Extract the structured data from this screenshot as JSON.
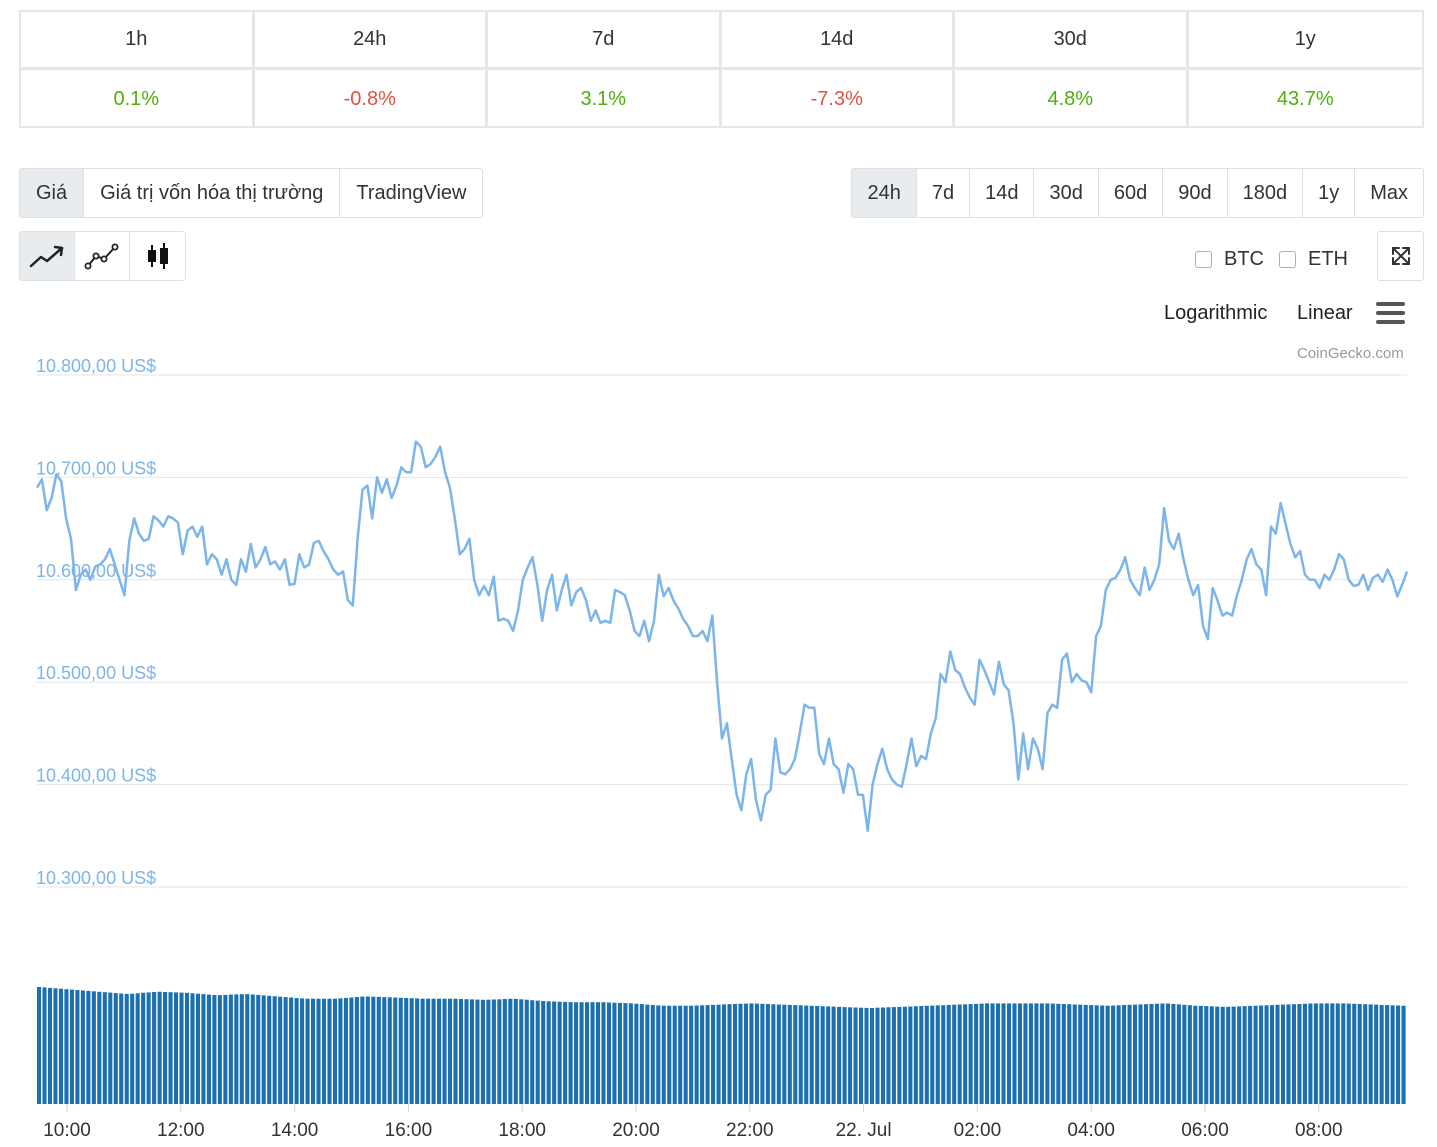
{
  "performance": {
    "headers": [
      "1h",
      "24h",
      "7d",
      "14d",
      "30d",
      "1y"
    ],
    "values": [
      "0.1%",
      "-0.8%",
      "3.1%",
      "-7.3%",
      "4.8%",
      "43.7%"
    ]
  },
  "tabs": {
    "type": [
      "Giá",
      "Giá trị vốn hóa thị trường",
      "TradingView"
    ],
    "range": [
      "24h",
      "7d",
      "14d",
      "30d",
      "60d",
      "90d",
      "180d",
      "1y",
      "Max"
    ]
  },
  "compare": {
    "btc": "BTC",
    "eth": "ETH"
  },
  "scale": {
    "log": "Logarithmic",
    "linear": "Linear"
  },
  "credits": "CoinGecko.com",
  "icons": {
    "style_line": "line-chart-icon",
    "style_points": "line-points-icon",
    "style_candle": "candlestick-icon",
    "expand": "expand-icon",
    "menu": "hamburger-menu-icon"
  },
  "colors": {
    "line": "#7cb5ec",
    "volume": "#1b70b0",
    "up": "#4eaf0a",
    "down": "#e15241"
  },
  "chart_data": {
    "type": "line",
    "y_tick_labels": [
      "10.800,00 US$",
      "10.700,00 US$",
      "10.600,00 US$",
      "10.500,00 US$",
      "10.400,00 US$",
      "10.300,00 US$"
    ],
    "y_ticks": [
      10800,
      10700,
      10600,
      10500,
      10400,
      10300
    ],
    "ylim": [
      10300,
      10800
    ],
    "x_tick_labels": [
      "10:00",
      "12:00",
      "14:00",
      "16:00",
      "18:00",
      "20:00",
      "22:00",
      "22. Jul",
      "02:00",
      "04:00",
      "06:00",
      "08:00"
    ],
    "series": [
      {
        "values": [
          10690,
          10698,
          10668,
          10680,
          10703,
          10696,
          10660,
          10640,
          10590,
          10605,
          10610,
          10600,
          10613,
          10615,
          10620,
          10630,
          10615,
          10600,
          10585,
          10638,
          10660,
          10645,
          10638,
          10640,
          10662,
          10658,
          10652,
          10662,
          10660,
          10656,
          10625,
          10648,
          10652,
          10642,
          10652,
          10615,
          10625,
          10620,
          10605,
          10620,
          10600,
          10595,
          10620,
          10608,
          10635,
          10612,
          10620,
          10632,
          10615,
          10618,
          10610,
          10620,
          10595,
          10596,
          10625,
          10612,
          10615,
          10636,
          10638,
          10628,
          10620,
          10610,
          10605,
          10608,
          10580,
          10575,
          10640,
          10688,
          10692,
          10660,
          10700,
          10685,
          10698,
          10680,
          10692,
          10710,
          10705,
          10705,
          10735,
          10730,
          10710,
          10713,
          10720,
          10730,
          10705,
          10690,
          10660,
          10625,
          10630,
          10640,
          10600,
          10585,
          10594,
          10585,
          10603,
          10560,
          10562,
          10560,
          10550,
          10570,
          10600,
          10612,
          10622,
          10595,
          10560,
          10590,
          10605,
          10570,
          10590,
          10605,
          10575,
          10588,
          10592,
          10580,
          10560,
          10570,
          10558,
          10560,
          10558,
          10590,
          10588,
          10585,
          10570,
          10550,
          10545,
          10560,
          10540,
          10560,
          10605,
          10584,
          10592,
          10580,
          10572,
          10562,
          10555,
          10545,
          10545,
          10550,
          10540,
          10565,
          10500,
          10445,
          10460,
          10425,
          10390,
          10375,
          10410,
          10425,
          10385,
          10365,
          10390,
          10395,
          10445,
          10412,
          10410,
          10415,
          10425,
          10450,
          10478,
          10475,
          10475,
          10430,
          10420,
          10445,
          10420,
          10415,
          10392,
          10420,
          10415,
          10390,
          10390,
          10355,
          10400,
          10420,
          10435,
          10415,
          10405,
          10400,
          10398,
          10420,
          10445,
          10418,
          10428,
          10425,
          10450,
          10465,
          10508,
          10500,
          10530,
          10512,
          10508,
          10495,
          10485,
          10478,
          10522,
          10512,
          10500,
          10488,
          10520,
          10498,
          10492,
          10460,
          10405,
          10450,
          10415,
          10445,
          10435,
          10415,
          10470,
          10478,
          10475,
          10522,
          10528,
          10500,
          10508,
          10502,
          10500,
          10490,
          10545,
          10555,
          10590,
          10600,
          10602,
          10610,
          10622,
          10600,
          10592,
          10585,
          10612,
          10590,
          10600,
          10615,
          10670,
          10638,
          10630,
          10645,
          10620,
          10600,
          10585,
          10595,
          10555,
          10542,
          10592,
          10580,
          10565,
          10568,
          10565,
          10585,
          10600,
          10620,
          10630,
          10615,
          10610,
          10585,
          10652,
          10645,
          10675,
          10655,
          10635,
          10622,
          10628,
          10605,
          10600,
          10600,
          10592,
          10605,
          10600,
          10610,
          10625,
          10620,
          10600,
          10594,
          10595,
          10605,
          10590,
          10602,
          10605,
          10598,
          10610,
          10600,
          10584,
          10595,
          10608
        ]
      }
    ],
    "volume": {
      "values_relative": [
        1.0,
        0.98,
        0.96,
        0.94,
        0.96,
        0.95,
        0.93,
        0.94,
        0.92,
        0.9,
        0.9,
        0.92,
        0.91,
        0.9,
        0.9,
        0.89,
        0.9,
        0.88,
        0.87,
        0.87,
        0.86,
        0.84,
        0.84,
        0.85,
        0.86,
        0.85,
        0.84,
        0.83,
        0.82,
        0.83,
        0.84,
        0.85,
        0.86,
        0.86,
        0.86,
        0.85,
        0.84,
        0.85,
        0.86,
        0.84,
        0.83,
        0.84,
        0.85,
        0.86,
        0.86,
        0.85,
        0.84
      ]
    }
  }
}
